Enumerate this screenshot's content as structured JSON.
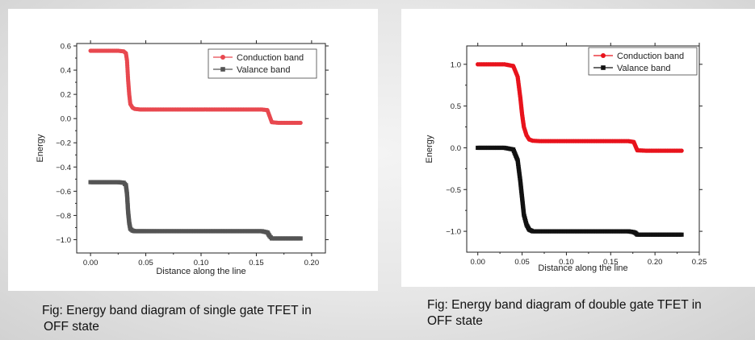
{
  "captions": {
    "left_line1": "Fig: Energy band diagram of single gate TFET in",
    "left_line2": "OFF state",
    "right_line1": "Fig: Energy band diagram of double gate TFET  in",
    "right_line2": "OFF state"
  },
  "chart_data": [
    {
      "type": "scatter",
      "title": "",
      "xlabel": "Distance along the line",
      "ylabel": "Energy",
      "xlim": [
        -0.0125,
        0.2125
      ],
      "ylim": [
        -1.11,
        0.62
      ],
      "xticks": [
        0.0,
        0.05,
        0.1,
        0.15,
        0.2
      ],
      "xtick_labels": [
        "0.00",
        "0.05",
        "0.10",
        "0.15",
        "0.20"
      ],
      "yticks": [
        0.6,
        0.4,
        0.2,
        0.0,
        -0.2,
        -0.4,
        -0.6,
        -0.8,
        -1.0
      ],
      "ytick_labels": [
        "0.6",
        "0.4",
        "0.2",
        "0.0",
        "−0.2",
        "−0.4",
        "−0.6",
        "−0.8",
        "−1.0"
      ],
      "grid": false,
      "legend": "top-right",
      "series": [
        {
          "name": "Conduction band",
          "color": "#e8484f",
          "marker": "circle",
          "x": [
            0.0,
            0.005,
            0.01,
            0.015,
            0.02,
            0.025,
            0.03,
            0.032,
            0.033,
            0.034,
            0.035,
            0.036,
            0.038,
            0.04,
            0.045,
            0.05,
            0.06,
            0.08,
            0.1,
            0.12,
            0.14,
            0.155,
            0.16,
            0.162,
            0.164,
            0.17,
            0.18,
            0.19
          ],
          "y": [
            0.56,
            0.56,
            0.56,
            0.56,
            0.56,
            0.56,
            0.555,
            0.54,
            0.48,
            0.32,
            0.2,
            0.12,
            0.09,
            0.08,
            0.075,
            0.075,
            0.075,
            0.075,
            0.075,
            0.075,
            0.075,
            0.075,
            0.07,
            0.02,
            -0.03,
            -0.035,
            -0.035,
            -0.035
          ]
        },
        {
          "name": "Valance band",
          "color": "#545454",
          "marker": "square",
          "x": [
            0.0,
            0.005,
            0.01,
            0.015,
            0.02,
            0.025,
            0.03,
            0.032,
            0.033,
            0.034,
            0.035,
            0.036,
            0.038,
            0.04,
            0.045,
            0.05,
            0.06,
            0.08,
            0.1,
            0.12,
            0.14,
            0.155,
            0.16,
            0.162,
            0.164,
            0.17,
            0.18,
            0.19
          ],
          "y": [
            -0.525,
            -0.525,
            -0.525,
            -0.525,
            -0.525,
            -0.525,
            -0.53,
            -0.55,
            -0.62,
            -0.77,
            -0.86,
            -0.91,
            -0.925,
            -0.93,
            -0.93,
            -0.93,
            -0.93,
            -0.93,
            -0.93,
            -0.93,
            -0.93,
            -0.93,
            -0.94,
            -0.97,
            -0.99,
            -0.99,
            -0.99,
            -0.99
          ]
        }
      ]
    },
    {
      "type": "scatter",
      "title": "",
      "xlabel": "Distance along the line",
      "ylabel": "Energy",
      "xlim": [
        -0.0125,
        0.25
      ],
      "ylim": [
        -1.25,
        1.22
      ],
      "xticks": [
        0.0,
        0.05,
        0.1,
        0.15,
        0.2,
        0.25
      ],
      "xtick_labels": [
        "0.00",
        "0.05",
        "0.10",
        "0.15",
        "0.20",
        "0.25"
      ],
      "yticks": [
        1.0,
        0.5,
        0.0,
        -0.5,
        -1.0
      ],
      "ytick_labels": [
        "1.0",
        "0.5",
        "0.0",
        "−0.5",
        "−1.0"
      ],
      "grid": false,
      "legend": "top-right",
      "series": [
        {
          "name": "Conduction band",
          "color": "#e8131c",
          "marker": "circle",
          "x": [
            0.0,
            0.01,
            0.02,
            0.03,
            0.04,
            0.045,
            0.048,
            0.05,
            0.052,
            0.055,
            0.058,
            0.062,
            0.07,
            0.09,
            0.11,
            0.13,
            0.15,
            0.17,
            0.176,
            0.178,
            0.18,
            0.19,
            0.21,
            0.23
          ],
          "y": [
            1.0,
            1.0,
            1.0,
            1.0,
            0.98,
            0.85,
            0.6,
            0.4,
            0.25,
            0.15,
            0.1,
            0.085,
            0.08,
            0.08,
            0.08,
            0.08,
            0.08,
            0.08,
            0.07,
            0.02,
            -0.03,
            -0.035,
            -0.035,
            -0.035
          ]
        },
        {
          "name": "Valance band",
          "color": "#111111",
          "marker": "square",
          "x": [
            0.0,
            0.01,
            0.02,
            0.03,
            0.04,
            0.045,
            0.048,
            0.05,
            0.052,
            0.055,
            0.058,
            0.062,
            0.07,
            0.09,
            0.11,
            0.13,
            0.15,
            0.17,
            0.176,
            0.178,
            0.18,
            0.19,
            0.21,
            0.23
          ],
          "y": [
            0.0,
            0.0,
            0.0,
            0.0,
            -0.02,
            -0.15,
            -0.4,
            -0.6,
            -0.8,
            -0.92,
            -0.98,
            -1.0,
            -1.0,
            -1.0,
            -1.0,
            -1.0,
            -1.0,
            -1.0,
            -1.01,
            -1.02,
            -1.04,
            -1.04,
            -1.04,
            -1.04
          ]
        }
      ]
    }
  ]
}
